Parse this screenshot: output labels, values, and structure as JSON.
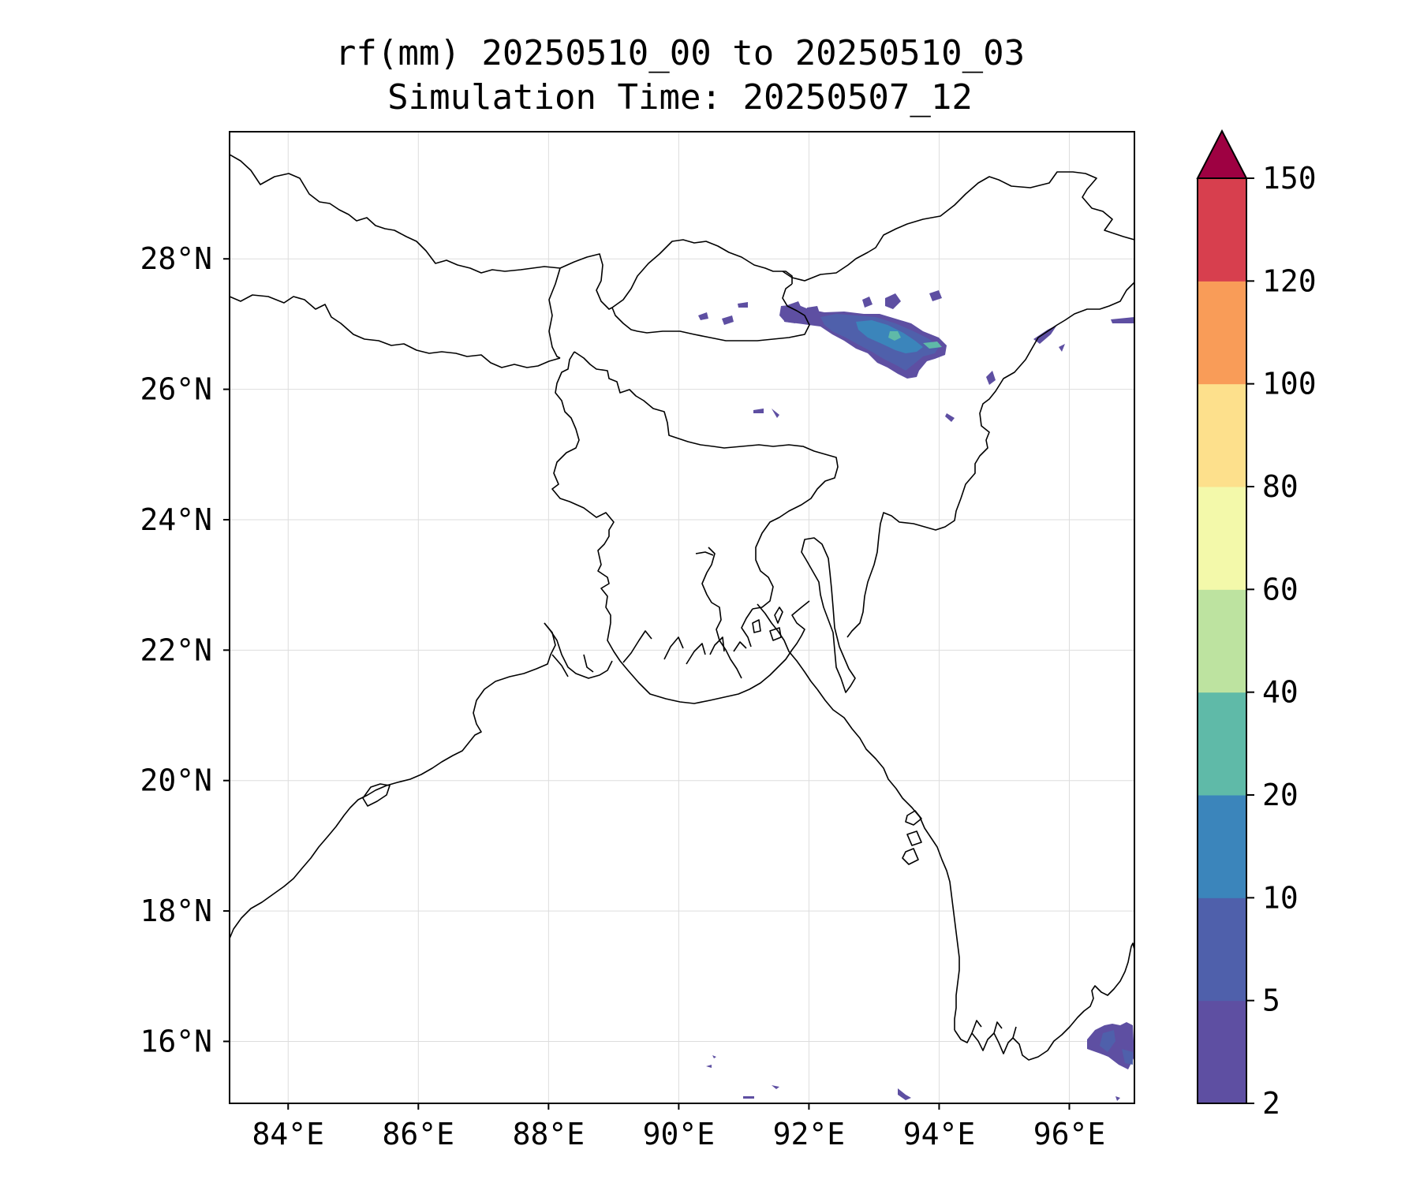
{
  "title": {
    "line1": "rf(mm) 20250510_00 to 20250510_03",
    "line2": "Simulation Time: 20250507_12"
  },
  "map": {
    "lon_range": [
      83.1,
      97.0
    ],
    "lat_range": [
      15.05,
      29.95
    ],
    "lon_ticks": [
      84,
      86,
      88,
      90,
      92,
      94,
      96
    ],
    "lon_tick_labels": [
      "84°E",
      "86°E",
      "88°E",
      "90°E",
      "92°E",
      "94°E",
      "96°E"
    ],
    "lat_ticks": [
      16,
      18,
      20,
      22,
      24,
      26,
      28
    ],
    "lat_tick_labels": [
      "16°N",
      "18°N",
      "20°N",
      "22°N",
      "24°N",
      "26°N",
      "28°N"
    ],
    "gridlines": true
  },
  "colorbar": {
    "levels": [
      2,
      5,
      10,
      20,
      40,
      60,
      80,
      100,
      120,
      150
    ],
    "level_labels": [
      "2",
      "5",
      "10",
      "20",
      "40",
      "60",
      "80",
      "100",
      "120",
      "150"
    ],
    "colors": [
      "#5e4fa2",
      "#4f60ab",
      "#3b85bb",
      "#5fbaa8",
      "#bde3a0",
      "#f3f9aa",
      "#fde08c",
      "#f99c58",
      "#d73f4e"
    ],
    "extend_color": "#9e0142",
    "extend": "max"
  },
  "rain_areas": [
    {
      "name": "assam-main-cell",
      "level": "5-10",
      "color": "#4f60ab"
    },
    {
      "name": "assam-core",
      "level": "10-20",
      "color": "#3b85bb"
    },
    {
      "name": "assam-peak",
      "level": "20-40",
      "color": "#5fbaa8"
    },
    {
      "name": "myanmar-south-coast",
      "level": "5-10",
      "color": "#4f60ab"
    }
  ]
}
